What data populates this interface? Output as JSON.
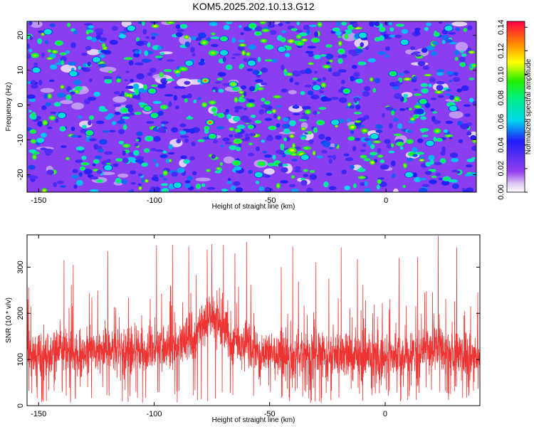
{
  "title": "KOM5.2025.202.10.13.G12",
  "chart_data": [
    {
      "type": "heatmap",
      "xlabel": "Height of straight line (km)",
      "ylabel": "Frequency (Hz)",
      "xlim": [
        -155,
        39
      ],
      "ylim": [
        -25,
        24
      ],
      "xticks": [
        -150,
        -100,
        -50,
        0
      ],
      "yticks": [
        -20,
        -10,
        0,
        10,
        20
      ],
      "colorbar": {
        "label": "Normalized spectral amplitude",
        "range": [
          0,
          0.145
        ],
        "ticks": [
          "0.00",
          "0.02",
          "0.04",
          "0.06",
          "0.08",
          "0.10",
          "0.12",
          "0.14"
        ]
      },
      "peaks": [
        {
          "x": -78,
          "y": 7,
          "value": 0.14
        },
        {
          "x": -76,
          "y": -5,
          "value": 0.14
        },
        {
          "x": -66,
          "y": 6,
          "value": 0.11
        },
        {
          "x": -70,
          "y": 19,
          "value": 0.1
        },
        {
          "x": -70,
          "y": 15,
          "value": 0.08
        },
        {
          "x": -75,
          "y": -9,
          "value": 0.09
        },
        {
          "x": -103,
          "y": -1,
          "value": 0.1
        },
        {
          "x": -100,
          "y": -3,
          "value": 0.09
        },
        {
          "x": -101,
          "y": 4,
          "value": 0.09
        },
        {
          "x": -17,
          "y": 4,
          "value": 0.1
        },
        {
          "x": -128,
          "y": -8,
          "value": 0.09
        },
        {
          "x": 3,
          "y": 9,
          "value": 0.09
        },
        {
          "x": 16,
          "y": 1,
          "value": 0.09
        },
        {
          "x": 29,
          "y": -1,
          "value": 0.08
        },
        {
          "x": 19,
          "y": -11,
          "value": 0.08
        },
        {
          "x": -151,
          "y": 10,
          "value": 0.08
        },
        {
          "x": -146,
          "y": 21,
          "value": 0.08
        },
        {
          "x": -125,
          "y": 13,
          "value": 0.08
        },
        {
          "x": -90,
          "y": -23,
          "value": 0.08
        },
        {
          "x": -5,
          "y": -9,
          "value": 0.08
        },
        {
          "x": -135,
          "y": 9,
          "value": 0.07
        },
        {
          "x": -45,
          "y": 16,
          "value": 0.08
        },
        {
          "x": -110,
          "y": 22,
          "value": 0.07
        },
        {
          "x": -58,
          "y": 12,
          "value": 0.07
        },
        {
          "x": -35,
          "y": -15,
          "value": 0.07
        },
        {
          "x": -140,
          "y": -3,
          "value": 0.07
        },
        {
          "x": -30,
          "y": 5,
          "value": 0.07
        },
        {
          "x": 8,
          "y": 18,
          "value": 0.07
        },
        {
          "x": -120,
          "y": -18,
          "value": 0.07
        },
        {
          "x": -55,
          "y": -20,
          "value": 0.07
        },
        {
          "x": -10,
          "y": 20,
          "value": 0.07
        },
        {
          "x": 27,
          "y": 22,
          "value": 0.07
        },
        {
          "x": 10,
          "y": -20,
          "value": 0.07
        },
        {
          "x": -85,
          "y": 12,
          "value": 0.07
        },
        {
          "x": -22,
          "y": -5,
          "value": 0.07
        }
      ]
    },
    {
      "type": "line",
      "xlabel": "Height of straight line (km)",
      "ylabel": "SNR (10 * v/v)",
      "xlim": [
        -155,
        41
      ],
      "ylim": [
        0,
        370
      ],
      "xticks": [
        -150,
        -100,
        -50,
        0
      ],
      "yticks": [
        0,
        100,
        200,
        300
      ],
      "series": [
        {
          "color": "#ee3333",
          "samples": 2600,
          "baseline": 120,
          "spread": 55,
          "envelope": [
            {
              "x": -155,
              "y": 120
            },
            {
              "x": -140,
              "y": 125
            },
            {
              "x": -130,
              "y": 130
            },
            {
              "x": -110,
              "y": 125
            },
            {
              "x": -100,
              "y": 135
            },
            {
              "x": -90,
              "y": 140
            },
            {
              "x": -80,
              "y": 175
            },
            {
              "x": -76,
              "y": 200
            },
            {
              "x": -72,
              "y": 185
            },
            {
              "x": -66,
              "y": 150
            },
            {
              "x": -55,
              "y": 125
            },
            {
              "x": -40,
              "y": 120
            },
            {
              "x": -20,
              "y": 120
            },
            {
              "x": 0,
              "y": 115
            },
            {
              "x": 10,
              "y": 120
            },
            {
              "x": 20,
              "y": 135
            },
            {
              "x": 30,
              "y": 125
            },
            {
              "x": 41,
              "y": 120
            }
          ],
          "peaks": [
            {
              "x": 23,
              "y": 368
            },
            {
              "x": -60,
              "y": 355
            },
            {
              "x": -75,
              "y": 350
            },
            {
              "x": -70,
              "y": 348
            },
            {
              "x": -92,
              "y": 348
            },
            {
              "x": -99,
              "y": 347
            },
            {
              "x": -85,
              "y": 345
            },
            {
              "x": -40,
              "y": 345
            },
            {
              "x": -19,
              "y": 343
            },
            {
              "x": 31,
              "y": 343
            },
            {
              "x": -120,
              "y": 335
            },
            {
              "x": -77,
              "y": 338
            },
            {
              "x": -65,
              "y": 330
            },
            {
              "x": -139,
              "y": 315
            },
            {
              "x": -12,
              "y": 318
            },
            {
              "x": 6,
              "y": 320
            },
            {
              "x": 14,
              "y": 322
            },
            {
              "x": -30,
              "y": 310
            },
            {
              "x": -135,
              "y": 305
            },
            {
              "x": -45,
              "y": 300
            }
          ]
        }
      ]
    }
  ]
}
